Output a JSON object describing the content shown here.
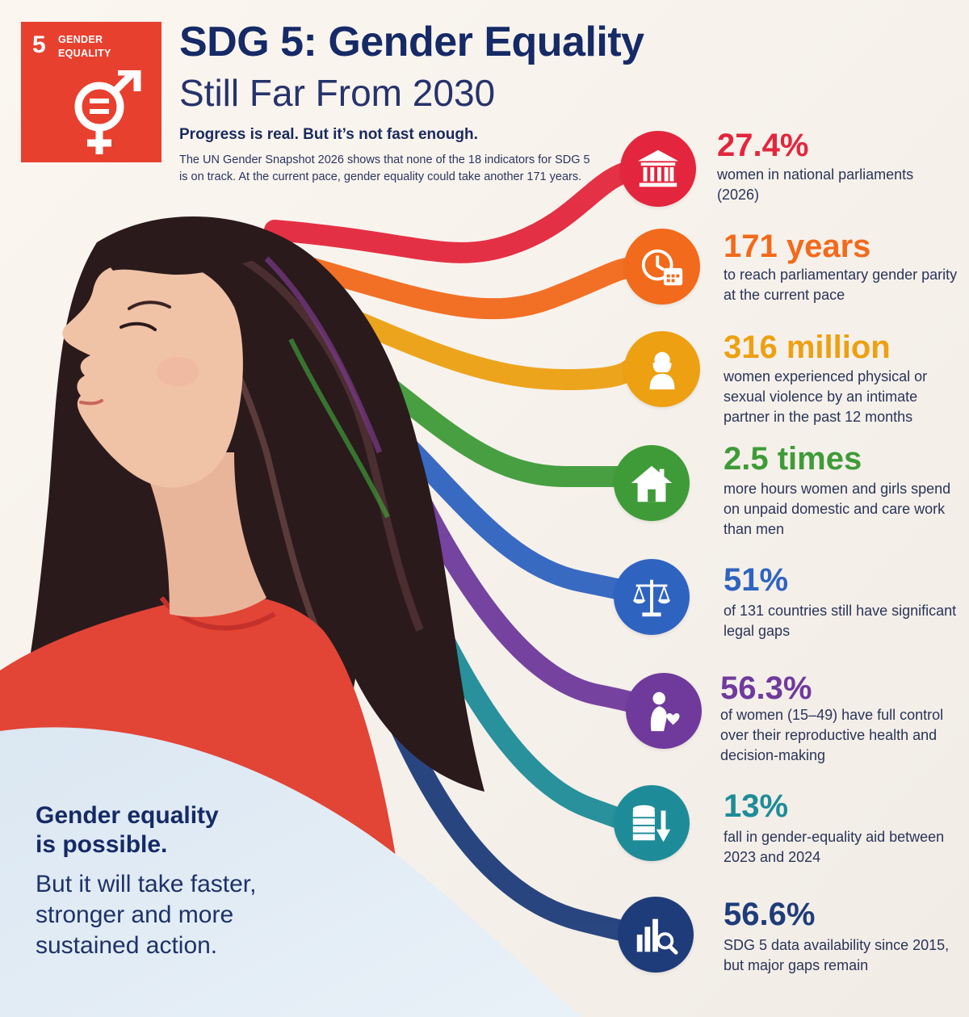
{
  "badge": {
    "number": "5",
    "label_line1": "GENDER",
    "label_line2": "EQUALITY",
    "color": "#e8402f",
    "icon": "gender-equality-symbol-icon"
  },
  "header": {
    "title": "SDG 5: Gender Equality",
    "subtitle": "Still Far From 2030",
    "tagline": "Progress is real. But it’s not fast enough.",
    "intro": "The UN Gender Snapshot 2026 shows that none of the 18 indicators for SDG 5 is on track. At the current pace, gender equality could take another 171 years."
  },
  "stats": [
    {
      "value": "27.4%",
      "desc": "women in national parliaments (2026)",
      "color": "#e3263d",
      "icon": "parliament-building-icon"
    },
    {
      "value": "171  years",
      "desc": "to reach parliamentary gender parity at the current pace",
      "color": "#f26a1b",
      "icon": "clock-calendar-icon"
    },
    {
      "value": "316 million",
      "desc": "women experienced physical or sexual violence by an intimate partner in the past 12 months",
      "color": "#eda012",
      "icon": "woman-icon"
    },
    {
      "value": "2.5 times",
      "desc": "more hours women and girls spend on unpaid domestic and care work than men",
      "color": "#3f9b38",
      "icon": "house-icon"
    },
    {
      "value": "51%",
      "desc": "of 131 countries still have significant legal gaps",
      "color": "#2f63c0",
      "icon": "scales-of-justice-icon"
    },
    {
      "value": "56.3%",
      "desc": "of women (15–49) have full control over their reproductive health and decision-making",
      "color": "#6f3a9c",
      "icon": "pregnant-woman-heart-icon"
    },
    {
      "value": "13%",
      "desc": "fall in gender-equality aid between 2023 and 2024",
      "color": "#1e8c98",
      "icon": "coins-down-arrow-icon"
    },
    {
      "value": "56.6%",
      "desc": "SDG 5 data availability since 2015, but major gaps remain",
      "color": "#1f3c7a",
      "icon": "bar-chart-magnifier-icon"
    }
  ],
  "footer": {
    "headline_line1": "Gender equality",
    "headline_line2": "is possible.",
    "body": "But it will take faster, stronger and more sustained action."
  }
}
